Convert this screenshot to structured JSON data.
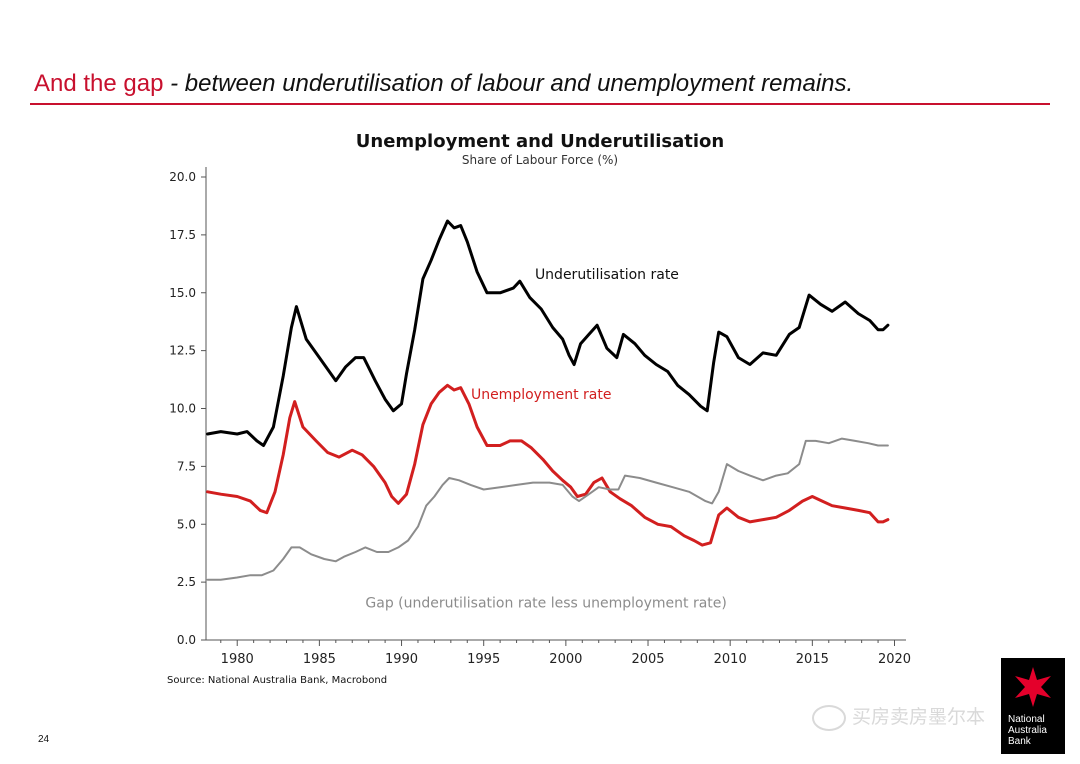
{
  "slide": {
    "title_lead": "And the gap",
    "title_rest": " - between underutilisation of labour and unemployment remains.",
    "page_number": "24",
    "watermark": "买房卖房墨尔本",
    "logo_text": [
      "National",
      "Australia",
      "Bank"
    ]
  },
  "colors": {
    "accent": "#c8102e",
    "underutilisation": "#000000",
    "unemployment": "#d21f1f",
    "gap": "#8c8c8c"
  },
  "chart_data": {
    "type": "line",
    "title": "Unemployment and Underutilisation",
    "subtitle": "Share of Labour Force (%)",
    "source": "Source: National Australia Bank, Macrobond",
    "ylim": [
      0,
      20
    ],
    "xlim": [
      1978.1,
      2020.7
    ],
    "y_ticks": [
      "0.0",
      "2.5",
      "5.0",
      "7.5",
      "10.0",
      "12.5",
      "15.0",
      "17.5",
      "20.0"
    ],
    "x_ticks": [
      "1980",
      "1985",
      "1990",
      "1995",
      "2000",
      "2005",
      "2010",
      "2015",
      "2020"
    ],
    "annotations": [
      {
        "text": "Underutilisation rate",
        "x": 2002.5,
        "y": 15.6,
        "color": "#111111"
      },
      {
        "text": "Unemployment rate",
        "x": 1998.5,
        "y": 10.4,
        "color": "#d21f1f"
      },
      {
        "text": "Gap (underutilisation rate less unemployment rate)",
        "x": 1998.8,
        "y": 1.4,
        "color": "#8c8c8c"
      }
    ],
    "series": [
      {
        "name": "Underutilisation rate",
        "x": [
          1978.2,
          1979,
          1980,
          1980.6,
          1981.2,
          1981.6,
          1982.2,
          1982.8,
          1983.3,
          1983.6,
          1984.2,
          1985,
          1986,
          1986.6,
          1987.2,
          1987.7,
          1988.4,
          1989,
          1989.5,
          1990,
          1990.3,
          1990.8,
          1991.3,
          1991.8,
          1992.3,
          1992.8,
          1993.2,
          1993.6,
          1994,
          1994.6,
          1995.2,
          1996,
          1996.8,
          1997.2,
          1997.8,
          1998.5,
          1999.2,
          1999.8,
          2000.2,
          2000.5,
          2000.9,
          2001.4,
          2001.9,
          2002.5,
          2003.1,
          2003.5,
          2004.2,
          2004.8,
          2005.5,
          2006.2,
          2006.8,
          2007.5,
          2008.2,
          2008.6,
          2009,
          2009.3,
          2009.8,
          2010.5,
          2011.2,
          2012,
          2012.8,
          2013.6,
          2014.2,
          2014.8,
          2015.5,
          2016.2,
          2017,
          2017.8,
          2018.5,
          2019,
          2019.3,
          2019.6
        ],
        "values": [
          8.9,
          9.0,
          8.9,
          9.0,
          8.6,
          8.4,
          9.2,
          11.4,
          13.5,
          14.4,
          13.0,
          12.2,
          11.2,
          11.8,
          12.2,
          12.2,
          11.2,
          10.4,
          9.9,
          10.2,
          11.5,
          13.4,
          15.6,
          16.4,
          17.3,
          18.1,
          17.8,
          17.9,
          17.2,
          15.9,
          15.0,
          15.0,
          15.2,
          15.5,
          14.8,
          14.3,
          13.5,
          13.0,
          12.3,
          11.9,
          12.8,
          13.2,
          13.6,
          12.6,
          12.2,
          13.2,
          12.8,
          12.3,
          11.9,
          11.6,
          11.0,
          10.6,
          10.1,
          9.9,
          12.0,
          13.3,
          13.1,
          12.2,
          11.9,
          12.4,
          12.3,
          13.2,
          13.5,
          14.9,
          14.5,
          14.2,
          14.6,
          14.1,
          13.8,
          13.4,
          13.4,
          13.6
        ]
      },
      {
        "name": "Unemployment rate",
        "x": [
          1978.2,
          1979,
          1980,
          1980.8,
          1981.4,
          1981.8,
          1982.3,
          1982.8,
          1983.2,
          1983.5,
          1984,
          1984.8,
          1985.5,
          1986.2,
          1987,
          1987.6,
          1988.3,
          1989,
          1989.4,
          1989.8,
          1990.3,
          1990.8,
          1991.3,
          1991.8,
          1992.3,
          1992.8,
          1993.2,
          1993.6,
          1994.1,
          1994.6,
          1995.2,
          1996,
          1996.6,
          1997.3,
          1997.9,
          1998.6,
          1999.2,
          1999.8,
          2000.3,
          2000.7,
          2001.2,
          2001.7,
          2002.2,
          2002.7,
          2003.3,
          2004,
          2004.8,
          2005.6,
          2006.4,
          2007.2,
          2007.8,
          2008.3,
          2008.8,
          2009.3,
          2009.8,
          2010.5,
          2011.2,
          2012,
          2012.8,
          2013.6,
          2014.4,
          2015,
          2015.6,
          2016.2,
          2017,
          2017.8,
          2018.5,
          2019,
          2019.3,
          2019.6
        ],
        "values": [
          6.4,
          6.3,
          6.2,
          6.0,
          5.6,
          5.5,
          6.4,
          8.0,
          9.6,
          10.3,
          9.2,
          8.6,
          8.1,
          7.9,
          8.2,
          8.0,
          7.5,
          6.8,
          6.2,
          5.9,
          6.3,
          7.6,
          9.3,
          10.2,
          10.7,
          11.0,
          10.8,
          10.9,
          10.2,
          9.2,
          8.4,
          8.4,
          8.6,
          8.6,
          8.3,
          7.8,
          7.3,
          6.9,
          6.6,
          6.2,
          6.3,
          6.8,
          7.0,
          6.4,
          6.1,
          5.8,
          5.3,
          5.0,
          4.9,
          4.5,
          4.3,
          4.1,
          4.2,
          5.4,
          5.7,
          5.3,
          5.1,
          5.2,
          5.3,
          5.6,
          6.0,
          6.2,
          6.0,
          5.8,
          5.7,
          5.6,
          5.5,
          5.1,
          5.1,
          5.2
        ]
      },
      {
        "name": "Gap (underutilisation rate less unemployment rate)",
        "x": [
          1978.2,
          1979,
          1980,
          1980.8,
          1981.5,
          1982.2,
          1982.8,
          1983.3,
          1983.8,
          1984.5,
          1985.3,
          1986,
          1986.5,
          1987.2,
          1987.8,
          1988.5,
          1989.2,
          1989.8,
          1990.4,
          1991,
          1991.5,
          1992,
          1992.5,
          1992.9,
          1993.5,
          1994.2,
          1995,
          1996,
          1997,
          1998,
          1999,
          1999.8,
          2000.4,
          2000.8,
          2001.4,
          2002,
          2002.7,
          2003.2,
          2003.6,
          2004.5,
          2005.5,
          2006.5,
          2007.5,
          2008.5,
          2008.9,
          2009.3,
          2009.8,
          2010.5,
          2011.2,
          2012,
          2012.8,
          2013.5,
          2014.2,
          2014.6,
          2015.2,
          2016,
          2016.8,
          2017.6,
          2018.4,
          2019,
          2019.6
        ],
        "values": [
          2.6,
          2.6,
          2.7,
          2.8,
          2.8,
          3.0,
          3.5,
          4.0,
          4.0,
          3.7,
          3.5,
          3.4,
          3.6,
          3.8,
          4.0,
          3.8,
          3.8,
          4.0,
          4.3,
          4.9,
          5.8,
          6.2,
          6.7,
          7.0,
          6.9,
          6.7,
          6.5,
          6.6,
          6.7,
          6.8,
          6.8,
          6.7,
          6.2,
          6.0,
          6.3,
          6.6,
          6.5,
          6.5,
          7.1,
          7.0,
          6.8,
          6.6,
          6.4,
          6.0,
          5.9,
          6.4,
          7.6,
          7.3,
          7.1,
          6.9,
          7.1,
          7.2,
          7.6,
          8.6,
          8.6,
          8.5,
          8.7,
          8.6,
          8.5,
          8.4,
          8.4
        ]
      }
    ]
  }
}
